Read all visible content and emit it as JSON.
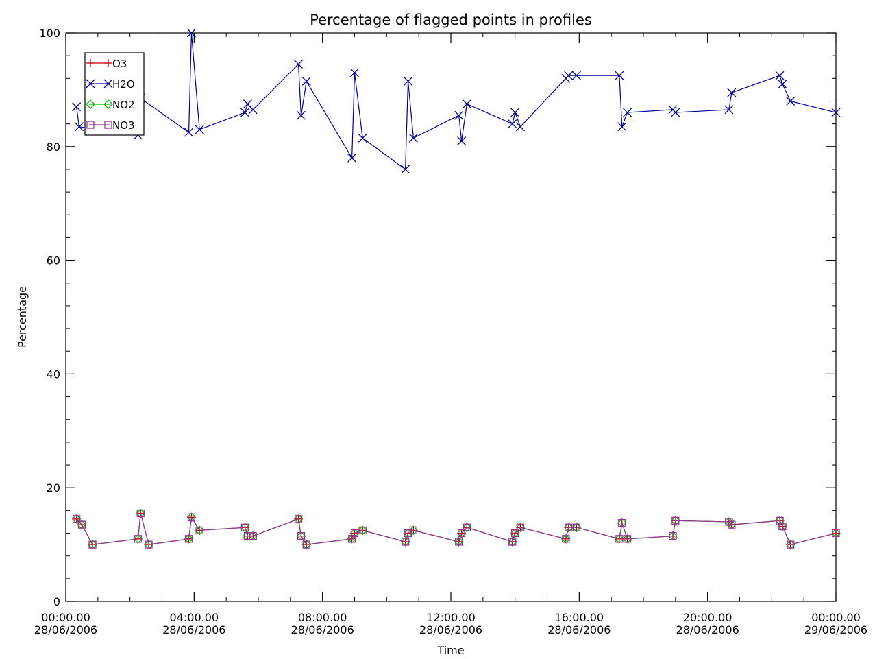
{
  "chart_data": {
    "type": "line",
    "title": "Percentage of flagged points in profiles",
    "xlabel": "Time",
    "ylabel": "Percentage",
    "xlim": [
      "2006-06-28 00:00",
      "2006-06-29 00:00"
    ],
    "ylim": [
      0,
      100
    ],
    "x_ticks": [
      {
        "time": "00:00.00",
        "date": "28/06/2006"
      },
      {
        "time": "04:00.00",
        "date": "28/06/2006"
      },
      {
        "time": "08:00.00",
        "date": "28/06/2006"
      },
      {
        "time": "12:00.00",
        "date": "28/06/2006"
      },
      {
        "time": "16:00.00",
        "date": "28/06/2006"
      },
      {
        "time": "20:00.00",
        "date": "28/06/2006"
      },
      {
        "time": "00:00.00",
        "date": "29/06/2006"
      }
    ],
    "y_ticks": [
      "0",
      "20",
      "40",
      "60",
      "80",
      "100"
    ],
    "grid": false,
    "legend_position": "top-left",
    "series": [
      {
        "name": "O3",
        "color": "#cc0000",
        "marker": "plus",
        "points": [
          [
            "06-28 00:20",
            14.5
          ],
          [
            "06-28 00:30",
            13.5
          ],
          [
            "06-28 00:50",
            10.0
          ],
          [
            "06-28 02:15",
            11.0
          ],
          [
            "06-28 02:20",
            15.5
          ],
          [
            "06-28 02:35",
            10.0
          ],
          [
            "06-28 03:50",
            11.0
          ],
          [
            "06-28 03:55",
            14.8
          ],
          [
            "06-28 04:10",
            12.5
          ],
          [
            "06-28 05:35",
            13.0
          ],
          [
            "06-28 05:40",
            11.5
          ],
          [
            "06-28 05:50",
            11.5
          ],
          [
            "06-28 07:15",
            14.5
          ],
          [
            "06-28 07:20",
            11.5
          ],
          [
            "06-28 07:30",
            10.0
          ],
          [
            "06-28 08:55",
            11.0
          ],
          [
            "06-28 09:00",
            12.0
          ],
          [
            "06-28 09:15",
            12.5
          ],
          [
            "06-28 10:35",
            10.5
          ],
          [
            "06-28 10:40",
            12.0
          ],
          [
            "06-28 10:50",
            12.5
          ],
          [
            "06-28 12:15",
            10.5
          ],
          [
            "06-28 12:20",
            12.0
          ],
          [
            "06-28 12:30",
            13.0
          ],
          [
            "06-28 13:55",
            10.5
          ],
          [
            "06-28 14:00",
            12.0
          ],
          [
            "06-28 14:10",
            13.0
          ],
          [
            "06-28 15:35",
            11.0
          ],
          [
            "06-28 15:40",
            13.0
          ],
          [
            "06-28 15:55",
            13.0
          ],
          [
            "06-28 17:15",
            11.0
          ],
          [
            "06-28 17:20",
            13.8
          ],
          [
            "06-28 17:30",
            11.0
          ],
          [
            "06-28 18:55",
            11.5
          ],
          [
            "06-28 19:00",
            14.2
          ],
          [
            "06-28 20:40",
            14.0
          ],
          [
            "06-28 20:45",
            13.5
          ],
          [
            "06-28 22:15",
            14.2
          ],
          [
            "06-28 22:20",
            13.2
          ],
          [
            "06-28 22:35",
            10.0
          ],
          [
            "06-29 00:00",
            12.0
          ]
        ]
      },
      {
        "name": "H2O",
        "color": "#000099",
        "marker": "x",
        "points": [
          [
            "06-28 00:20",
            87.0
          ],
          [
            "06-28 00:25",
            83.5
          ],
          [
            "06-28 02:15",
            82.0
          ],
          [
            "06-28 02:20",
            88.5
          ],
          [
            "06-28 03:50",
            82.5
          ],
          [
            "06-28 03:55",
            100.0
          ],
          [
            "06-28 04:10",
            83.0
          ],
          [
            "06-28 05:35",
            86.0
          ],
          [
            "06-28 05:40",
            87.5
          ],
          [
            "06-28 05:50",
            86.5
          ],
          [
            "06-28 07:15",
            94.5
          ],
          [
            "06-28 07:20",
            85.5
          ],
          [
            "06-28 07:30",
            91.5
          ],
          [
            "06-28 08:55",
            78.0
          ],
          [
            "06-28 09:00",
            93.0
          ],
          [
            "06-28 09:15",
            81.5
          ],
          [
            "06-28 10:35",
            76.0
          ],
          [
            "06-28 10:40",
            91.5
          ],
          [
            "06-28 10:50",
            81.5
          ],
          [
            "06-28 12:15",
            85.5
          ],
          [
            "06-28 12:20",
            81.0
          ],
          [
            "06-28 12:30",
            87.5
          ],
          [
            "06-28 13:55",
            84.0
          ],
          [
            "06-28 14:00",
            86.0
          ],
          [
            "06-28 14:10",
            83.5
          ],
          [
            "06-28 15:35",
            92.0
          ],
          [
            "06-28 15:40",
            92.5
          ],
          [
            "06-28 15:55",
            92.5
          ],
          [
            "06-28 17:15",
            92.5
          ],
          [
            "06-28 17:20",
            83.5
          ],
          [
            "06-28 17:30",
            86.0
          ],
          [
            "06-28 18:55",
            86.5
          ],
          [
            "06-28 19:00",
            86.0
          ],
          [
            "06-28 20:40",
            86.5
          ],
          [
            "06-28 20:45",
            89.5
          ],
          [
            "06-28 22:15",
            92.5
          ],
          [
            "06-28 22:20",
            91.0
          ],
          [
            "06-28 22:35",
            88.0
          ],
          [
            "06-29 00:00",
            86.0
          ]
        ]
      },
      {
        "name": "NO2",
        "color": "#00bb00",
        "marker": "diamond",
        "points": [
          [
            "06-28 00:20",
            14.5
          ],
          [
            "06-28 00:30",
            13.5
          ],
          [
            "06-28 00:50",
            10.0
          ],
          [
            "06-28 02:15",
            11.0
          ],
          [
            "06-28 02:20",
            15.5
          ],
          [
            "06-28 02:35",
            10.0
          ],
          [
            "06-28 03:50",
            11.0
          ],
          [
            "06-28 03:55",
            14.8
          ],
          [
            "06-28 04:10",
            12.5
          ],
          [
            "06-28 05:35",
            13.0
          ],
          [
            "06-28 05:40",
            11.5
          ],
          [
            "06-28 05:50",
            11.5
          ],
          [
            "06-28 07:15",
            14.5
          ],
          [
            "06-28 07:20",
            11.5
          ],
          [
            "06-28 07:30",
            10.0
          ],
          [
            "06-28 08:55",
            11.0
          ],
          [
            "06-28 09:00",
            12.0
          ],
          [
            "06-28 09:15",
            12.5
          ],
          [
            "06-28 10:35",
            10.5
          ],
          [
            "06-28 10:40",
            12.0
          ],
          [
            "06-28 10:50",
            12.5
          ],
          [
            "06-28 12:15",
            10.5
          ],
          [
            "06-28 12:20",
            12.0
          ],
          [
            "06-28 12:30",
            13.0
          ],
          [
            "06-28 13:55",
            10.5
          ],
          [
            "06-28 14:00",
            12.0
          ],
          [
            "06-28 14:10",
            13.0
          ],
          [
            "06-28 15:35",
            11.0
          ],
          [
            "06-28 15:40",
            13.0
          ],
          [
            "06-28 15:55",
            13.0
          ],
          [
            "06-28 17:15",
            11.0
          ],
          [
            "06-28 17:20",
            13.8
          ],
          [
            "06-28 17:30",
            11.0
          ],
          [
            "06-28 18:55",
            11.5
          ],
          [
            "06-28 19:00",
            14.2
          ],
          [
            "06-28 20:40",
            14.0
          ],
          [
            "06-28 20:45",
            13.5
          ],
          [
            "06-28 22:15",
            14.2
          ],
          [
            "06-28 22:20",
            13.2
          ],
          [
            "06-28 22:35",
            10.0
          ],
          [
            "06-29 00:00",
            12.0
          ]
        ]
      },
      {
        "name": "NO3",
        "color": "#993399",
        "marker": "square",
        "points": [
          [
            "06-28 00:20",
            14.5
          ],
          [
            "06-28 00:30",
            13.5
          ],
          [
            "06-28 00:50",
            10.0
          ],
          [
            "06-28 02:15",
            11.0
          ],
          [
            "06-28 02:20",
            15.5
          ],
          [
            "06-28 02:35",
            10.0
          ],
          [
            "06-28 03:50",
            11.0
          ],
          [
            "06-28 03:55",
            14.8
          ],
          [
            "06-28 04:10",
            12.5
          ],
          [
            "06-28 05:35",
            13.0
          ],
          [
            "06-28 05:40",
            11.5
          ],
          [
            "06-28 05:50",
            11.5
          ],
          [
            "06-28 07:15",
            14.5
          ],
          [
            "06-28 07:20",
            11.5
          ],
          [
            "06-28 07:30",
            10.0
          ],
          [
            "06-28 08:55",
            11.0
          ],
          [
            "06-28 09:00",
            12.0
          ],
          [
            "06-28 09:15",
            12.5
          ],
          [
            "06-28 10:35",
            10.5
          ],
          [
            "06-28 10:40",
            12.0
          ],
          [
            "06-28 10:50",
            12.5
          ],
          [
            "06-28 12:15",
            10.5
          ],
          [
            "06-28 12:20",
            12.0
          ],
          [
            "06-28 12:30",
            13.0
          ],
          [
            "06-28 13:55",
            10.5
          ],
          [
            "06-28 14:00",
            12.0
          ],
          [
            "06-28 14:10",
            13.0
          ],
          [
            "06-28 15:35",
            11.0
          ],
          [
            "06-28 15:40",
            13.0
          ],
          [
            "06-28 15:55",
            13.0
          ],
          [
            "06-28 17:15",
            11.0
          ],
          [
            "06-28 17:20",
            13.8
          ],
          [
            "06-28 17:30",
            11.0
          ],
          [
            "06-28 18:55",
            11.5
          ],
          [
            "06-28 19:00",
            14.2
          ],
          [
            "06-28 20:40",
            14.0
          ],
          [
            "06-28 20:45",
            13.5
          ],
          [
            "06-28 22:15",
            14.2
          ],
          [
            "06-28 22:20",
            13.2
          ],
          [
            "06-28 22:35",
            10.0
          ],
          [
            "06-29 00:00",
            12.0
          ]
        ]
      }
    ]
  }
}
